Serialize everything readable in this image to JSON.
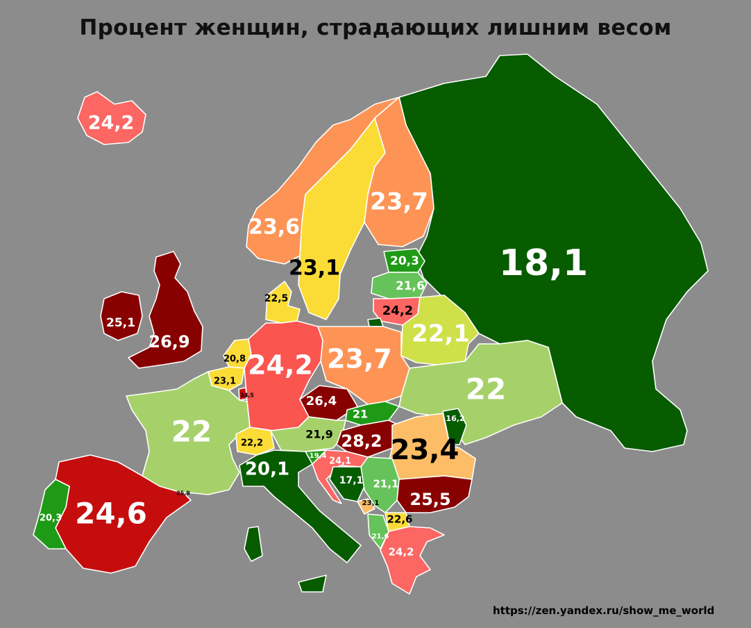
{
  "title": "Процент женщин, страдающих лишним весом",
  "source": "https://zen.yandex.ru/show_me_world",
  "colors": {
    "background": "#8c8c8c",
    "border": "#ffffff",
    "dark_green": "#075c00",
    "green": "#1f9a16",
    "light_green": "#66c25a",
    "pale_green": "#a6d16a",
    "yellow_green": "#cfe049",
    "yellow": "#fbdc36",
    "light_orange": "#fdbd66",
    "orange": "#fd9455",
    "salmon": "#fc6663",
    "red": "#fb5550",
    "dark_red": "#c60d0d",
    "maroon": "#870101"
  },
  "chart_data": {
    "type": "choropleth",
    "title": "Процент женщин, страдающих лишним весом",
    "legend": "none",
    "labels": [
      {
        "value": "24,2",
        "color": "salmon"
      },
      {
        "value": "23,6",
        "color": "orange"
      },
      {
        "value": "23,1",
        "color": "yellow"
      },
      {
        "value": "23,7",
        "color": "orange"
      },
      {
        "value": "18,1",
        "color": "dark_green"
      },
      {
        "value": "20,3",
        "color": "green"
      },
      {
        "value": "21,6",
        "color": "light_green"
      },
      {
        "value": "24,2",
        "color": "salmon"
      },
      {
        "value": "22,1",
        "color": "yellow_green"
      },
      {
        "value": "22,5",
        "color": "yellow"
      },
      {
        "value": "25,1",
        "color": "maroon"
      },
      {
        "value": "26,9",
        "color": "maroon"
      },
      {
        "value": "20,8",
        "color": "yellow"
      },
      {
        "value": "23,1",
        "color": "yellow"
      },
      {
        "value": "24,5",
        "color": "dark_red"
      },
      {
        "value": "24,2",
        "color": "red"
      },
      {
        "value": "23,7",
        "color": "orange"
      },
      {
        "value": "22",
        "color": "pale_green"
      },
      {
        "value": "26,4",
        "color": "maroon"
      },
      {
        "value": "21",
        "color": "green"
      },
      {
        "value": "16,2",
        "color": "dark_green"
      },
      {
        "value": "22",
        "color": "pale_green"
      },
      {
        "value": "21,9",
        "color": "pale_green"
      },
      {
        "value": "22,2",
        "color": "yellow"
      },
      {
        "value": "28,2",
        "color": "maroon"
      },
      {
        "value": "23,4",
        "color": "light_orange"
      },
      {
        "value": "19,4",
        "color": "green"
      },
      {
        "value": "24,1",
        "color": "salmon"
      },
      {
        "value": "20,1",
        "color": "dark_green"
      },
      {
        "value": "17,1",
        "color": "dark_green"
      },
      {
        "value": "21,1",
        "color": "light_green"
      },
      {
        "value": "25,5",
        "color": "maroon"
      },
      {
        "value": "23,1",
        "color": "light_orange"
      },
      {
        "value": "22,6",
        "color": "yellow"
      },
      {
        "value": "21,6",
        "color": "light_green"
      },
      {
        "value": "24,2",
        "color": "salmon"
      },
      {
        "value": "25,9",
        "color": "dark_red"
      },
      {
        "value": "24,6",
        "color": "dark_red"
      },
      {
        "value": "20,3",
        "color": "green"
      }
    ]
  }
}
